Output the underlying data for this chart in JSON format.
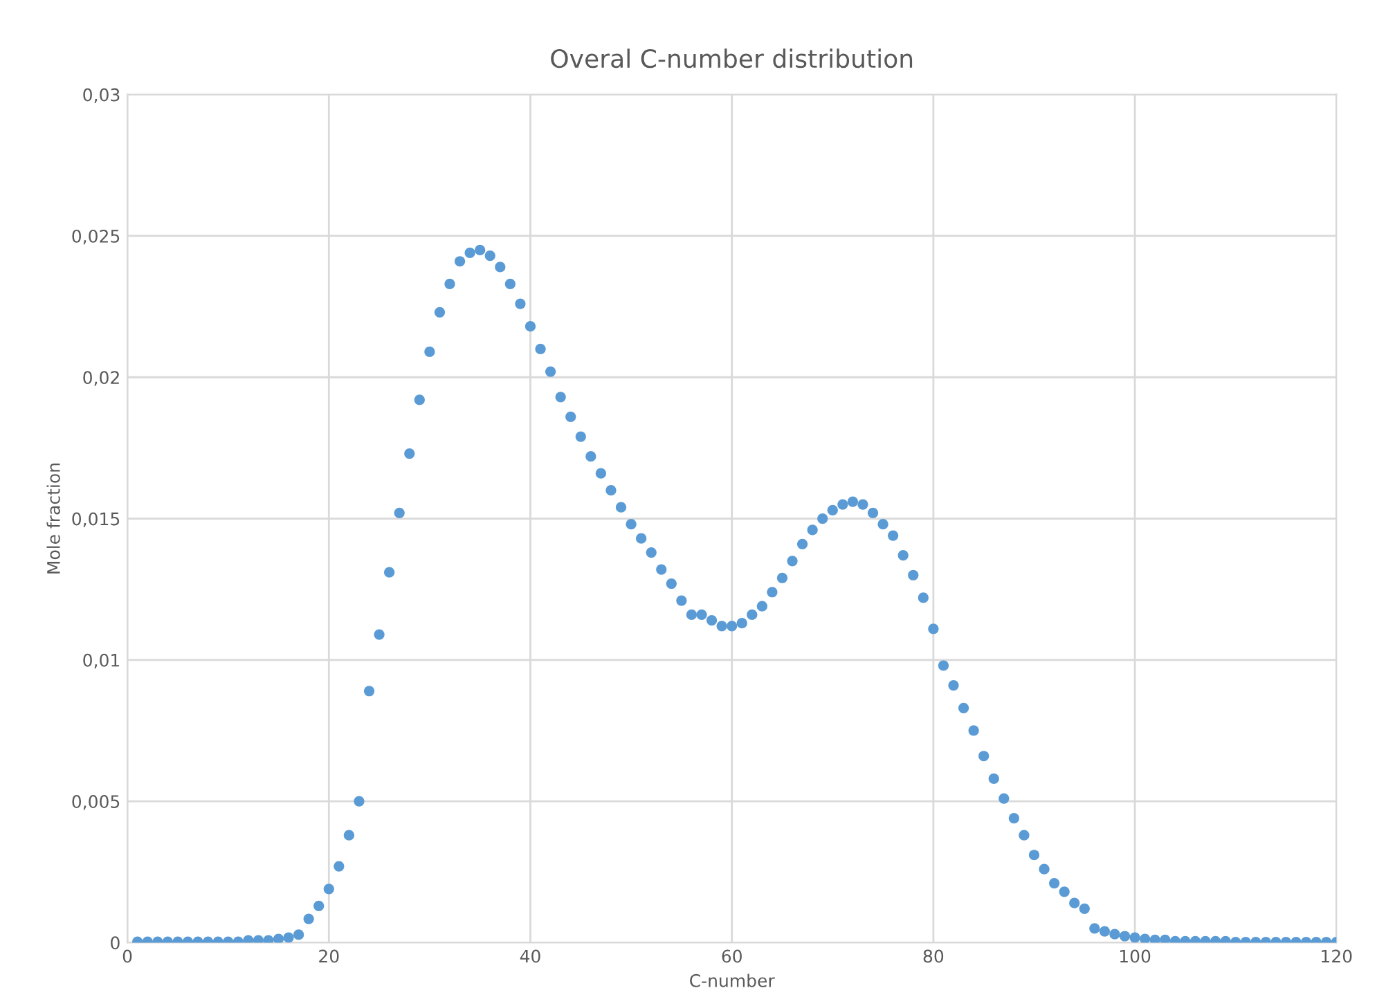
{
  "chart_data": {
    "type": "scatter",
    "title": "Overal C-number distribution",
    "xlabel": "C-number",
    "ylabel": "Mole fraction",
    "x": [
      1,
      2,
      3,
      4,
      5,
      6,
      7,
      8,
      9,
      10,
      11,
      12,
      13,
      14,
      15,
      16,
      17,
      18,
      19,
      20,
      21,
      22,
      23,
      24,
      25,
      26,
      27,
      28,
      29,
      30,
      31,
      32,
      33,
      34,
      35,
      36,
      37,
      38,
      39,
      40,
      41,
      42,
      43,
      44,
      45,
      46,
      47,
      48,
      49,
      50,
      51,
      52,
      53,
      54,
      55,
      56,
      57,
      58,
      59,
      60,
      61,
      62,
      63,
      64,
      65,
      66,
      67,
      68,
      69,
      70,
      71,
      72,
      73,
      74,
      75,
      76,
      77,
      78,
      79,
      80,
      81,
      82,
      83,
      84,
      85,
      86,
      87,
      88,
      89,
      90,
      91,
      92,
      93,
      94,
      95,
      96,
      97,
      98,
      99,
      100,
      101,
      102,
      103,
      104,
      105,
      106,
      107,
      108,
      109,
      110,
      111,
      112,
      113,
      114,
      115,
      116,
      117,
      118,
      119,
      120
    ],
    "series": [
      {
        "color": "#5b9bd5",
        "values": [
          3e-05,
          3e-05,
          3e-05,
          3e-05,
          3e-05,
          3e-05,
          3e-05,
          3e-05,
          3e-05,
          3e-05,
          3e-05,
          8e-05,
          8e-05,
          8e-05,
          0.00013,
          0.00018,
          0.00028,
          0.00084,
          0.0013,
          0.0019,
          0.0027,
          0.0038,
          0.005,
          0.0089,
          0.0109,
          0.0131,
          0.0152,
          0.0173,
          0.0192,
          0.0209,
          0.0223,
          0.0233,
          0.0241,
          0.0244,
          0.0245,
          0.0243,
          0.0239,
          0.0233,
          0.0226,
          0.0218,
          0.021,
          0.0202,
          0.0193,
          0.0186,
          0.0179,
          0.0172,
          0.0166,
          0.016,
          0.0154,
          0.0148,
          0.0143,
          0.0138,
          0.0132,
          0.0127,
          0.0121,
          0.0116,
          0.0116,
          0.0114,
          0.0112,
          0.0112,
          0.0113,
          0.0116,
          0.0119,
          0.0124,
          0.0129,
          0.0135,
          0.0141,
          0.0146,
          0.015,
          0.0153,
          0.0155,
          0.0156,
          0.0155,
          0.0152,
          0.0148,
          0.0144,
          0.0137,
          0.013,
          0.0122,
          0.0111,
          0.0098,
          0.0091,
          0.0083,
          0.0075,
          0.0066,
          0.0058,
          0.0051,
          0.0044,
          0.0038,
          0.0031,
          0.0026,
          0.0021,
          0.0018,
          0.0014,
          0.0012,
          0.0005,
          0.0004,
          0.0003,
          0.00023,
          0.00018,
          0.00013,
          0.0001,
          0.0001,
          5e-05,
          5e-05,
          5e-05,
          5e-05,
          5e-05,
          5e-05,
          2e-05,
          2e-05,
          2e-05,
          2e-05,
          2e-05,
          2e-05,
          2e-05,
          2e-05,
          2e-05,
          2e-05,
          2e-05
        ]
      }
    ],
    "xlim": [
      0,
      120
    ],
    "xticks": [
      0,
      20,
      40,
      60,
      80,
      100,
      120
    ],
    "ylim": [
      0,
      0.03
    ],
    "yticks": [
      0,
      {
        "value": 0.005,
        "label": "0,005"
      },
      {
        "value": 0.01,
        "label": "0,01"
      },
      {
        "value": 0.015,
        "label": "0,015"
      },
      {
        "value": 0.02,
        "label": "0,02"
      },
      {
        "value": 0.025,
        "label": "0,025"
      },
      {
        "value": 0.03,
        "label": "0,03"
      }
    ],
    "grid": true,
    "marker": "circle",
    "legend": false
  }
}
